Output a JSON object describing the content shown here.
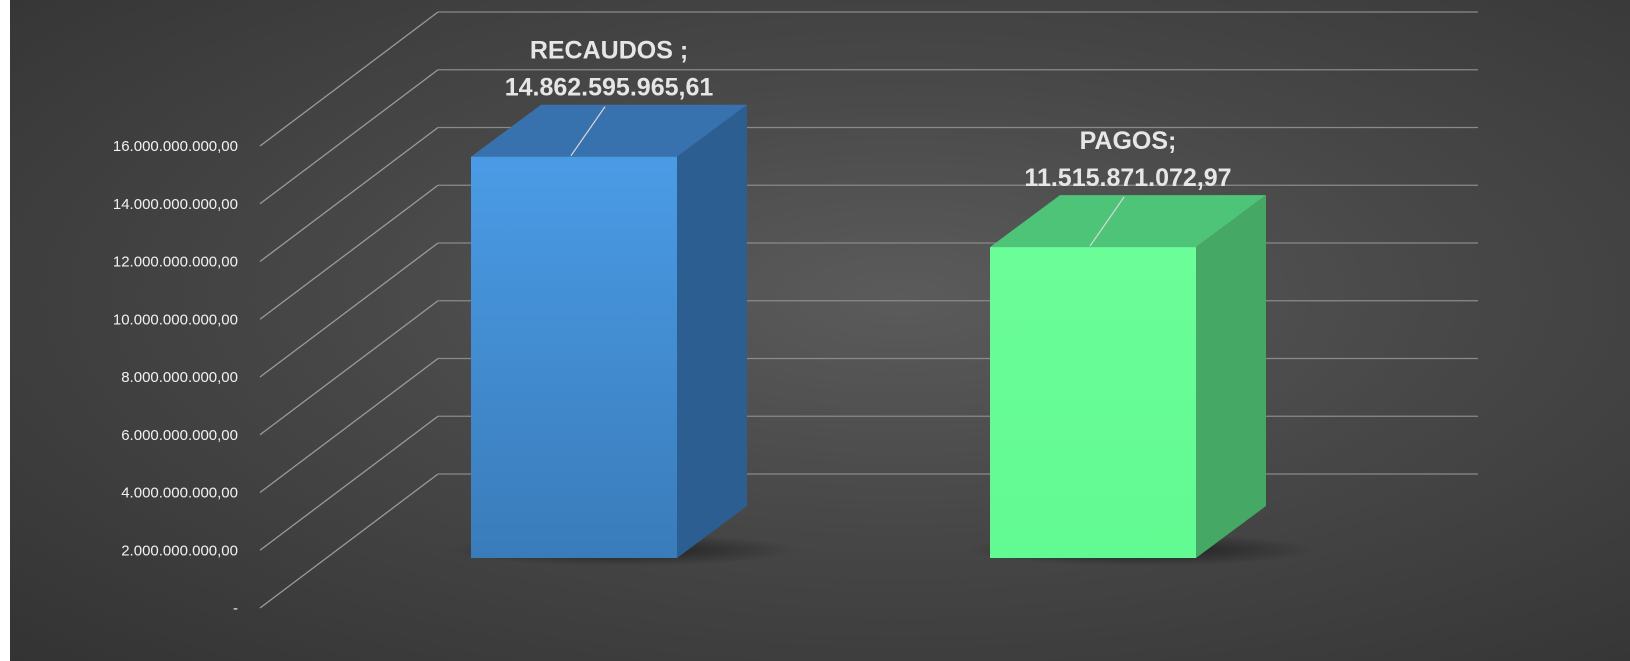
{
  "chart_data": {
    "type": "bar",
    "title": "",
    "xlabel": "",
    "ylabel": "",
    "categories": [
      "RECAUDOS",
      "PAGOS"
    ],
    "values": [
      14862595965.61,
      11515871072.97
    ],
    "data_labels": [
      {
        "category_text": "RECAUDOS ;",
        "value_text": "14.862.595.965,61"
      },
      {
        "category_text": "PAGOS;",
        "value_text": "11.515.871.072,97"
      }
    ],
    "ylim": [
      0,
      16000000000
    ],
    "ytick_values": [
      0,
      2000000000,
      4000000000,
      6000000000,
      8000000000,
      10000000000,
      12000000000,
      14000000000,
      16000000000
    ],
    "ytick_labels": [
      "-",
      "2.000.000.000,00",
      "4.000.000.000,00",
      "6.000.000.000,00",
      "8.000.000.000,00",
      "10.000.000.000,00",
      "12.000.000.000,00",
      "14.000.000.000,00",
      "16.000.000.000,00"
    ],
    "grid": true,
    "legend": "none",
    "style": "3d",
    "colors": [
      "#4a9be6",
      "#6bfd98"
    ],
    "background": "#474747"
  }
}
